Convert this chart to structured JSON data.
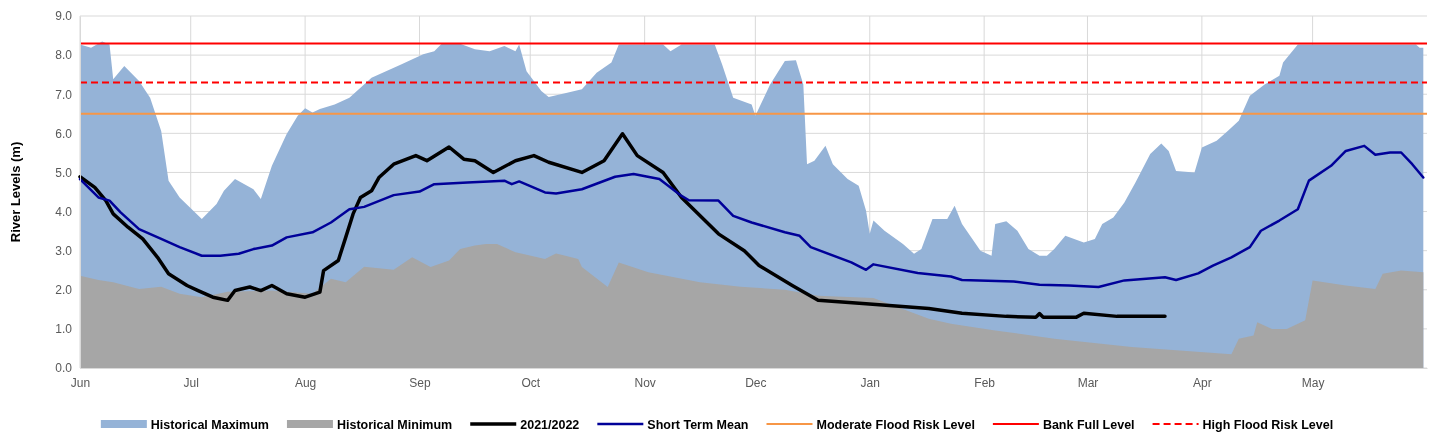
{
  "chart_data": {
    "type": "area",
    "ylabel": "River Levels (m)",
    "xlim": [
      "2021-06-01",
      "2022-06-01"
    ],
    "xticks": [
      {
        "value": "2021-06-01",
        "label": "Jun"
      },
      {
        "value": "2021-07-01",
        "label": "Jul"
      },
      {
        "value": "2021-08-01",
        "label": "Aug"
      },
      {
        "value": "2021-09-01",
        "label": "Sep"
      },
      {
        "value": "2021-10-01",
        "label": "Oct"
      },
      {
        "value": "2021-11-01",
        "label": "Nov"
      },
      {
        "value": "2021-12-01",
        "label": "Dec"
      },
      {
        "value": "2022-01-01",
        "label": "Jan"
      },
      {
        "value": "2022-02-01",
        "label": "Feb"
      },
      {
        "value": "2022-03-01",
        "label": "Mar"
      },
      {
        "value": "2022-04-01",
        "label": "Apr"
      },
      {
        "value": "2022-05-01",
        "label": "May"
      }
    ],
    "ylim": [
      0,
      9
    ],
    "yticks": [
      {
        "value": 0,
        "label": "0.0"
      },
      {
        "value": 1,
        "label": "1.0"
      },
      {
        "value": 2,
        "label": "2.0"
      },
      {
        "value": 3,
        "label": "3.0"
      },
      {
        "value": 4,
        "label": "4.0"
      },
      {
        "value": 5,
        "label": "5.0"
      },
      {
        "value": 6,
        "label": "6.0"
      },
      {
        "value": 7,
        "label": "7.0"
      },
      {
        "value": 8,
        "label": "8.0"
      },
      {
        "value": 9,
        "label": "9.0"
      }
    ],
    "grid": true,
    "legend": "bottom",
    "series": [
      {
        "name": "Historical Maximum",
        "color": "#95b3d7",
        "x": [
          "2021-06-01",
          "2021-06-04",
          "2021-06-07",
          "2021-06-09",
          "2021-06-10",
          "2021-06-13",
          "2021-06-17",
          "2021-06-20",
          "2021-06-23",
          "2021-06-25",
          "2021-06-28",
          "2021-07-04",
          "2021-07-08",
          "2021-07-10",
          "2021-07-13",
          "2021-07-18",
          "2021-07-20",
          "2021-07-23",
          "2021-07-27",
          "2021-07-30",
          "2021-08-01",
          "2021-08-03",
          "2021-08-05",
          "2021-08-09",
          "2021-08-13",
          "2021-08-19",
          "2021-08-27",
          "2021-09-02",
          "2021-09-05",
          "2021-09-07",
          "2021-09-12",
          "2021-09-16",
          "2021-09-20",
          "2021-09-24",
          "2021-09-27",
          "2021-09-28",
          "2021-09-30",
          "2021-10-04",
          "2021-10-06",
          "2021-10-11",
          "2021-10-15",
          "2021-10-19",
          "2021-10-23",
          "2021-10-25",
          "2021-11-06",
          "2021-11-08",
          "2021-11-11",
          "2021-11-20",
          "2021-11-22",
          "2021-11-25",
          "2021-11-30",
          "2021-12-01",
          "2021-12-05",
          "2021-12-09",
          "2021-12-12",
          "2021-12-14",
          "2021-12-15",
          "2021-12-17",
          "2021-12-20",
          "2021-12-22",
          "2021-12-26",
          "2021-12-29",
          "2021-12-31",
          "2022-01-01",
          "2022-01-02",
          "2022-01-05",
          "2022-01-10",
          "2022-01-13",
          "2022-01-15",
          "2022-01-18",
          "2022-01-22",
          "2022-01-24",
          "2022-01-26",
          "2022-01-31",
          "2022-02-03",
          "2022-02-04",
          "2022-02-07",
          "2022-02-10",
          "2022-02-13",
          "2022-02-16",
          "2022-02-18",
          "2022-02-20",
          "2022-02-23",
          "2022-02-28",
          "2022-03-03",
          "2022-03-05",
          "2022-03-08",
          "2022-03-11",
          "2022-03-14",
          "2022-03-18",
          "2022-03-21",
          "2022-03-23",
          "2022-03-25",
          "2022-03-30",
          "2022-04-01",
          "2022-04-05",
          "2022-04-08",
          "2022-04-11",
          "2022-04-14",
          "2022-04-18",
          "2022-04-22",
          "2022-04-23",
          "2022-04-27",
          "2022-05-29",
          "2022-05-30",
          "2022-05-31"
        ],
        "values": [
          8.27,
          8.19,
          8.35,
          8.27,
          7.38,
          7.72,
          7.34,
          6.91,
          6.06,
          4.79,
          4.36,
          3.81,
          4.19,
          4.53,
          4.83,
          4.57,
          4.32,
          5.17,
          5.98,
          6.45,
          6.64,
          6.53,
          6.62,
          6.74,
          6.91,
          7.42,
          7.76,
          8.02,
          8.1,
          8.29,
          8.29,
          8.15,
          8.1,
          8.23,
          8.1,
          8.27,
          7.59,
          7.08,
          6.93,
          7.04,
          7.13,
          7.55,
          7.81,
          8.27,
          8.27,
          8.1,
          8.27,
          8.27,
          7.76,
          6.91,
          6.74,
          6.45,
          7.25,
          7.85,
          7.87,
          7.25,
          5.21,
          5.3,
          5.68,
          5.21,
          4.83,
          4.66,
          4.02,
          3.43,
          3.77,
          3.51,
          3.17,
          2.92,
          3.04,
          3.81,
          3.81,
          4.15,
          3.68,
          3.0,
          2.87,
          3.68,
          3.75,
          3.51,
          3.04,
          2.87,
          2.87,
          3.04,
          3.38,
          3.21,
          3.3,
          3.68,
          3.85,
          4.23,
          4.74,
          5.47,
          5.74,
          5.55,
          5.04,
          5.0,
          5.64,
          5.81,
          6.06,
          6.32,
          6.96,
          7.25,
          7.47,
          7.81,
          8.27,
          8.27,
          8.19,
          8.19
        ]
      },
      {
        "name": "Historical Minimum",
        "color": "#a6a6a6",
        "x": [
          "2021-06-01",
          "2021-06-06",
          "2021-06-10",
          "2021-06-17",
          "2021-06-23",
          "2021-06-28",
          "2021-07-04",
          "2021-07-11",
          "2021-07-23",
          "2021-08-03",
          "2021-08-08",
          "2021-08-12",
          "2021-08-17",
          "2021-08-25",
          "2021-08-30",
          "2021-09-04",
          "2021-09-09",
          "2021-09-12",
          "2021-09-16",
          "2021-09-19",
          "2021-09-22",
          "2021-09-27",
          "2021-10-05",
          "2021-10-08",
          "2021-10-14",
          "2021-10-15",
          "2021-10-22",
          "2021-10-25",
          "2021-11-02",
          "2021-11-16",
          "2021-11-27",
          "2021-12-09",
          "2021-12-18",
          "2022-01-02",
          "2022-01-17",
          "2022-01-23",
          "2022-02-04",
          "2022-02-20",
          "2022-03-13",
          "2022-03-26",
          "2022-04-09",
          "2022-04-11",
          "2022-04-15",
          "2022-04-16",
          "2022-04-20",
          "2022-04-24",
          "2022-04-29",
          "2022-05-01",
          "2022-05-10",
          "2022-05-18",
          "2022-05-20",
          "2022-05-25",
          "2022-05-31"
        ],
        "values": [
          2.36,
          2.25,
          2.19,
          2.02,
          2.08,
          1.9,
          1.81,
          1.95,
          1.98,
          1.9,
          2.28,
          2.19,
          2.59,
          2.51,
          2.83,
          2.58,
          2.75,
          3.04,
          3.13,
          3.17,
          3.17,
          2.96,
          2.79,
          2.93,
          2.79,
          2.58,
          2.07,
          2.7,
          2.45,
          2.19,
          2.08,
          2.0,
          1.85,
          1.79,
          1.26,
          1.13,
          0.96,
          0.75,
          0.54,
          0.45,
          0.35,
          0.75,
          0.83,
          1.17,
          1.0,
          1.0,
          1.22,
          2.24,
          2.11,
          2.02,
          2.41,
          2.49,
          2.45
        ]
      },
      {
        "name": "2021/2022",
        "type": "line",
        "color": "#000000",
        "x": [
          "2021-06-01",
          "2021-06-05",
          "2021-06-08",
          "2021-06-10",
          "2021-06-14",
          "2021-06-18",
          "2021-06-22",
          "2021-06-25",
          "2021-06-30",
          "2021-07-03",
          "2021-07-07",
          "2021-07-11",
          "2021-07-13",
          "2021-07-17",
          "2021-07-20",
          "2021-07-23",
          "2021-07-27",
          "2021-08-01",
          "2021-08-05",
          "2021-08-06",
          "2021-08-10",
          "2021-08-12",
          "2021-08-14",
          "2021-08-16",
          "2021-08-19",
          "2021-08-21",
          "2021-08-25",
          "2021-08-31",
          "2021-09-03",
          "2021-09-09",
          "2021-09-13",
          "2021-09-16",
          "2021-09-21",
          "2021-09-27",
          "2021-10-02",
          "2021-10-06",
          "2021-10-15",
          "2021-10-21",
          "2021-10-26",
          "2021-10-30",
          "2021-11-06",
          "2021-11-11",
          "2021-11-21",
          "2021-11-28",
          "2021-12-02",
          "2021-12-11",
          "2021-12-18",
          "2021-12-31",
          "2022-01-17",
          "2022-01-26",
          "2022-02-07",
          "2022-02-15",
          "2022-02-16",
          "2022-02-17",
          "2022-02-26",
          "2022-02-28",
          "2022-03-09",
          "2022-03-22"
        ],
        "values": [
          4.89,
          4.62,
          4.28,
          3.94,
          3.6,
          3.3,
          2.83,
          2.41,
          2.11,
          1.98,
          1.81,
          1.73,
          1.98,
          2.07,
          1.98,
          2.11,
          1.9,
          1.81,
          1.94,
          2.49,
          2.75,
          3.34,
          3.94,
          4.36,
          4.53,
          4.87,
          5.21,
          5.43,
          5.3,
          5.65,
          5.34,
          5.3,
          5.0,
          5.3,
          5.43,
          5.26,
          5.0,
          5.3,
          5.99,
          5.43,
          5.0,
          4.36,
          3.43,
          3.0,
          2.62,
          2.11,
          1.73,
          1.64,
          1.52,
          1.4,
          1.32,
          1.3,
          1.39,
          1.3,
          1.3,
          1.4,
          1.32,
          1.32
        ]
      },
      {
        "name": "Short Term Mean",
        "type": "line",
        "color": "#000099",
        "x": [
          "2021-06-01",
          "2021-06-06",
          "2021-06-09",
          "2021-06-12",
          "2021-06-17",
          "2021-06-23",
          "2021-06-28",
          "2021-07-04",
          "2021-07-09",
          "2021-07-14",
          "2021-07-18",
          "2021-07-23",
          "2021-07-27",
          "2021-08-03",
          "2021-08-08",
          "2021-08-13",
          "2021-08-17",
          "2021-08-25",
          "2021-09-01",
          "2021-09-05",
          "2021-09-14",
          "2021-09-24",
          "2021-09-26",
          "2021-09-28",
          "2021-10-05",
          "2021-10-08",
          "2021-10-15",
          "2021-10-24",
          "2021-10-29",
          "2021-11-05",
          "2021-11-11",
          "2021-11-13",
          "2021-11-21",
          "2021-11-25",
          "2021-11-30",
          "2021-12-09",
          "2021-12-13",
          "2021-12-16",
          "2021-12-27",
          "2021-12-31",
          "2022-01-02",
          "2022-01-14",
          "2022-01-23",
          "2022-01-26",
          "2022-02-09",
          "2022-02-16",
          "2022-02-24",
          "2022-03-04",
          "2022-03-11",
          "2022-03-22",
          "2022-03-25",
          "2022-03-31",
          "2022-04-04",
          "2022-04-09",
          "2022-04-14",
          "2022-04-17",
          "2022-04-22",
          "2022-04-27",
          "2022-04-30",
          "2022-05-06",
          "2022-05-10",
          "2022-05-15",
          "2022-05-18",
          "2022-05-22",
          "2022-05-25",
          "2022-05-28",
          "2022-05-31"
        ],
        "values": [
          4.83,
          4.36,
          4.28,
          3.98,
          3.55,
          3.3,
          3.09,
          2.87,
          2.87,
          2.92,
          3.04,
          3.13,
          3.34,
          3.47,
          3.72,
          4.06,
          4.12,
          4.42,
          4.51,
          4.7,
          4.74,
          4.79,
          4.7,
          4.77,
          4.49,
          4.46,
          4.57,
          4.89,
          4.96,
          4.83,
          4.4,
          4.29,
          4.28,
          3.89,
          3.72,
          3.47,
          3.38,
          3.09,
          2.7,
          2.51,
          2.65,
          2.43,
          2.34,
          2.25,
          2.21,
          2.13,
          2.11,
          2.07,
          2.24,
          2.32,
          2.25,
          2.42,
          2.62,
          2.83,
          3.09,
          3.51,
          3.77,
          4.06,
          4.79,
          5.17,
          5.55,
          5.68,
          5.45,
          5.51,
          5.51,
          5.21,
          4.87
        ]
      }
    ],
    "ref_lines": [
      {
        "axis": "y",
        "value": 6.5,
        "label": "Moderate Flood Risk Level",
        "color": "#f79646",
        "line_style": "solid"
      },
      {
        "axis": "y",
        "value": 8.3,
        "label": "Bank Full Level",
        "color": "#ff0000",
        "line_style": "solid"
      },
      {
        "axis": "y",
        "value": 7.3,
        "label": "High Flood Risk Level",
        "color": "#ff0000",
        "line_style": "dashed"
      }
    ]
  }
}
